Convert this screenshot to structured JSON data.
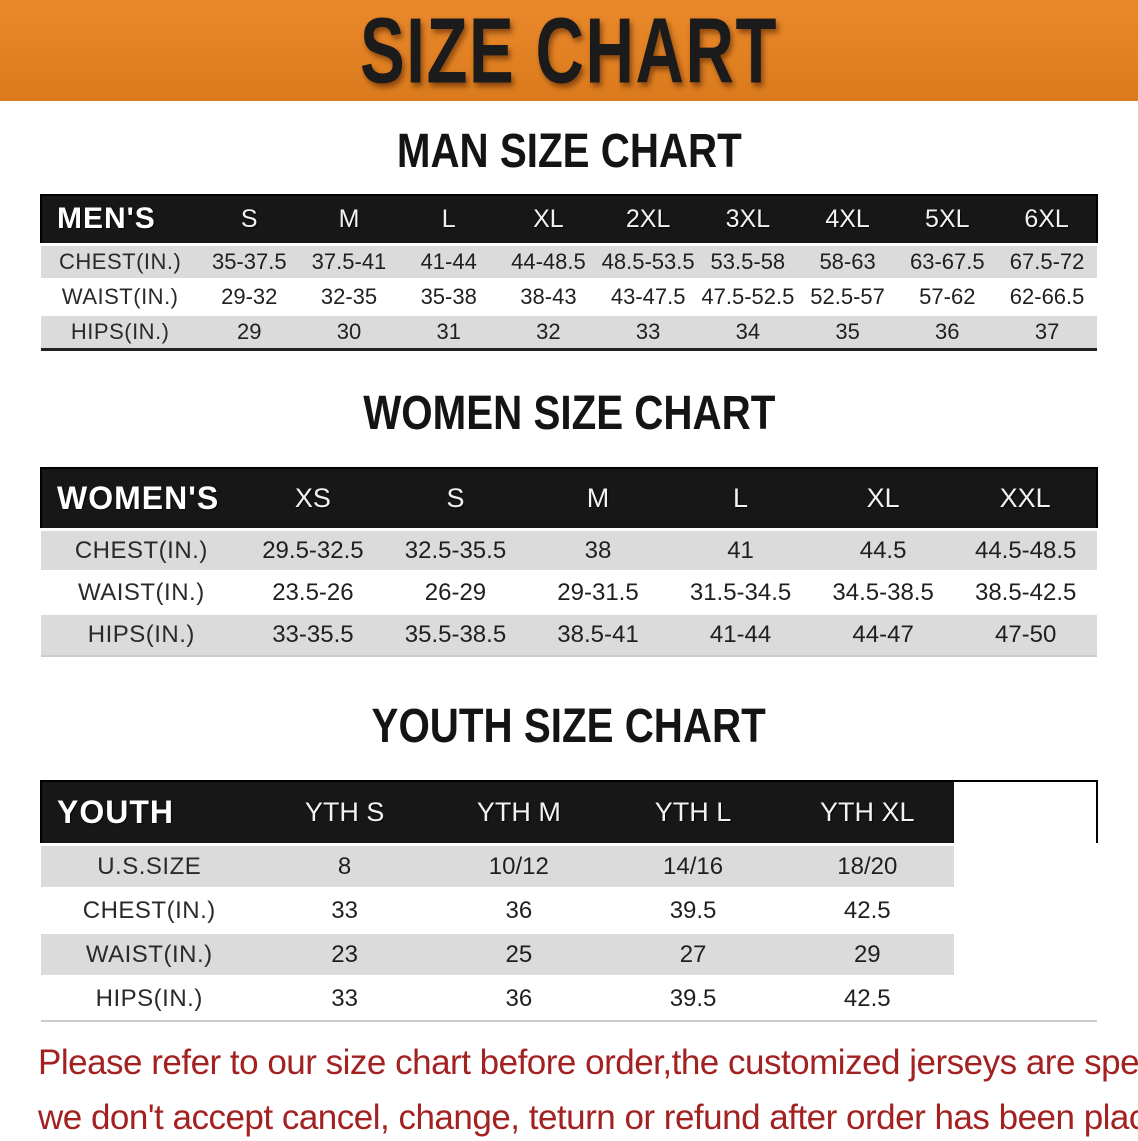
{
  "banner": {
    "title": "SIZE CHART"
  },
  "sections": [
    {
      "title": "MAN SIZE CHART",
      "table": {
        "header_label": "MEN'S",
        "sizes": [
          "S",
          "M",
          "L",
          "XL",
          "2XL",
          "3XL",
          "4XL",
          "5XL",
          "6XL"
        ],
        "rows": [
          {
            "label": "CHEST(IN.)",
            "values": [
              "35-37.5",
              "37.5-41",
              "41-44",
              "44-48.5",
              "48.5-53.5",
              "53.5-58",
              "58-63",
              "63-67.5",
              "67.5-72"
            ]
          },
          {
            "label": "WAIST(IN.)",
            "values": [
              "29-32",
              "32-35",
              "35-38",
              "38-43",
              "43-47.5",
              "47.5-52.5",
              "52.5-57",
              "57-62",
              "62-66.5"
            ]
          },
          {
            "label": "HIPS(IN.)",
            "values": [
              "29",
              "30",
              "31",
              "32",
              "33",
              "34",
              "35",
              "36",
              "37"
            ]
          }
        ]
      }
    },
    {
      "title": "WOMEN SIZE CHART",
      "table": {
        "header_label": "WOMEN'S",
        "sizes": [
          "XS",
          "S",
          "M",
          "L",
          "XL",
          "XXL"
        ],
        "rows": [
          {
            "label": "CHEST(IN.)",
            "values": [
              "29.5-32.5",
              "32.5-35.5",
              "38",
              "41",
              "44.5",
              "44.5-48.5"
            ]
          },
          {
            "label": "WAIST(IN.)",
            "values": [
              "23.5-26",
              "26-29",
              "29-31.5",
              "31.5-34.5",
              "34.5-38.5",
              "38.5-42.5"
            ]
          },
          {
            "label": "HIPS(IN.)",
            "values": [
              "33-35.5",
              "35.5-38.5",
              "38.5-41",
              "41-44",
              "44-47",
              "47-50"
            ]
          }
        ]
      }
    },
    {
      "title": "YOUTH SIZE CHART",
      "table": {
        "header_label": "YOUTH",
        "sizes": [
          "YTH S",
          "YTH M",
          "YTH L",
          "YTH XL"
        ],
        "rows": [
          {
            "label": "U.S.SIZE",
            "values": [
              "8",
              "10/12",
              "14/16",
              "18/20"
            ]
          },
          {
            "label": "CHEST(IN.)",
            "values": [
              "33",
              "36",
              "39.5",
              "42.5"
            ]
          },
          {
            "label": "WAIST(IN.)",
            "values": [
              "23",
              "25",
              "27",
              "29"
            ]
          },
          {
            "label": "HIPS(IN.)",
            "values": [
              "33",
              "36",
              "39.5",
              "42.5"
            ]
          }
        ]
      }
    }
  ],
  "disclaimer": {
    "line1": "Please refer to our size chart before order,the customized jerseys are special products,",
    "line2": "we don't accept cancel, change, teturn or refund after order has been placed!"
  },
  "colors": {
    "banner-bg": "#E8821E",
    "bar-bg": "#171717",
    "stripe": "#DBDBDB",
    "red": "#A32121",
    "title-ink": "#141414"
  }
}
